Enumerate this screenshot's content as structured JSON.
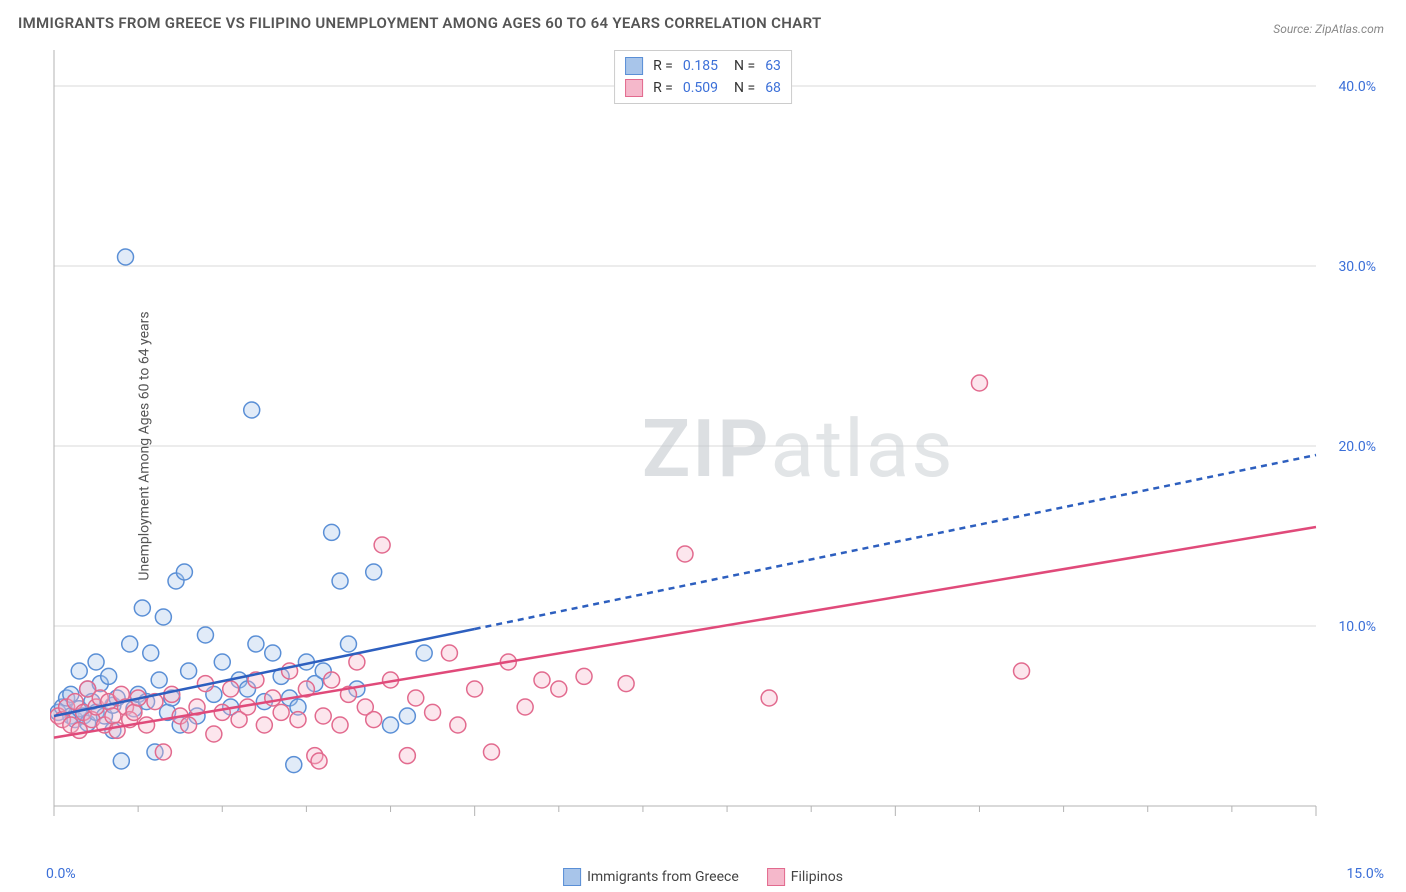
{
  "title": "IMMIGRANTS FROM GREECE VS FILIPINO UNEMPLOYMENT AMONG AGES 60 TO 64 YEARS CORRELATION CHART",
  "source": "Source: ZipAtlas.com",
  "y_axis_label": "Unemployment Among Ages 60 to 64 years",
  "watermark_a": "ZIP",
  "watermark_b": "atlas",
  "chart": {
    "type": "scatter",
    "background_color": "#ffffff",
    "grid_color": "#d9d9d9",
    "axis_color": "#b3b3b3",
    "tick_label_color": "#3b6fd8",
    "xlim": [
      0,
      15
    ],
    "ylim": [
      0,
      42
    ],
    "x_ticks": [
      0,
      5,
      10,
      15
    ],
    "x_tick_labels": [
      "0.0%",
      "",
      "",
      "15.0%"
    ],
    "x_minor_ticks": [
      1,
      2,
      3,
      4,
      6,
      7,
      8,
      9,
      11,
      12,
      13,
      14
    ],
    "y_ticks": [
      10,
      20,
      30,
      40
    ],
    "y_tick_labels": [
      "10.0%",
      "20.0%",
      "30.0%",
      "40.0%"
    ],
    "marker_radius": 8,
    "marker_stroke_width": 1.5,
    "marker_fill_opacity": 0.35,
    "series": [
      {
        "name": "Immigrants from Greece",
        "color_stroke": "#5a8fd6",
        "color_fill": "#a8c5ea",
        "R": "0.185",
        "N": "63",
        "regression": {
          "x1": 0,
          "y1": 5.0,
          "x2": 15,
          "y2": 19.5,
          "solid_until_x": 5.0,
          "color": "#2d5fbf",
          "width": 2.5,
          "dash": "6,5"
        },
        "points": [
          [
            0.05,
            5.2
          ],
          [
            0.1,
            5.5
          ],
          [
            0.15,
            6.0
          ],
          [
            0.2,
            5.0
          ],
          [
            0.2,
            6.2
          ],
          [
            0.25,
            4.8
          ],
          [
            0.3,
            5.4
          ],
          [
            0.3,
            7.5
          ],
          [
            0.35,
            5.0
          ],
          [
            0.4,
            6.5
          ],
          [
            0.4,
            4.6
          ],
          [
            0.45,
            5.8
          ],
          [
            0.5,
            8.0
          ],
          [
            0.5,
            5.2
          ],
          [
            0.55,
            6.8
          ],
          [
            0.6,
            5.0
          ],
          [
            0.65,
            7.2
          ],
          [
            0.7,
            5.6
          ],
          [
            0.7,
            4.2
          ],
          [
            0.75,
            6.0
          ],
          [
            0.8,
            2.5
          ],
          [
            0.85,
            30.5
          ],
          [
            0.9,
            9.0
          ],
          [
            0.95,
            5.4
          ],
          [
            1.0,
            6.2
          ],
          [
            1.05,
            11.0
          ],
          [
            1.1,
            5.8
          ],
          [
            1.15,
            8.5
          ],
          [
            1.2,
            3.0
          ],
          [
            1.25,
            7.0
          ],
          [
            1.3,
            10.5
          ],
          [
            1.35,
            5.2
          ],
          [
            1.4,
            6.0
          ],
          [
            1.45,
            12.5
          ],
          [
            1.5,
            4.5
          ],
          [
            1.55,
            13.0
          ],
          [
            1.6,
            7.5
          ],
          [
            1.7,
            5.0
          ],
          [
            1.8,
            9.5
          ],
          [
            1.9,
            6.2
          ],
          [
            2.0,
            8.0
          ],
          [
            2.1,
            5.5
          ],
          [
            2.2,
            7.0
          ],
          [
            2.3,
            6.5
          ],
          [
            2.35,
            22.0
          ],
          [
            2.4,
            9.0
          ],
          [
            2.5,
            5.8
          ],
          [
            2.6,
            8.5
          ],
          [
            2.7,
            7.2
          ],
          [
            2.8,
            6.0
          ],
          [
            2.85,
            2.3
          ],
          [
            2.9,
            5.5
          ],
          [
            3.0,
            8.0
          ],
          [
            3.1,
            6.8
          ],
          [
            3.2,
            7.5
          ],
          [
            3.3,
            15.2
          ],
          [
            3.4,
            12.5
          ],
          [
            3.5,
            9.0
          ],
          [
            3.6,
            6.5
          ],
          [
            3.8,
            13.0
          ],
          [
            4.0,
            4.5
          ],
          [
            4.2,
            5.0
          ],
          [
            4.4,
            8.5
          ]
        ]
      },
      {
        "name": "Filipinos",
        "color_stroke": "#e26a8e",
        "color_fill": "#f5b8cb",
        "R": "0.509",
        "N": "68",
        "regression": {
          "x1": 0,
          "y1": 3.8,
          "x2": 15,
          "y2": 15.5,
          "solid_until_x": 15,
          "color": "#e04a7a",
          "width": 2.5,
          "dash": null
        },
        "points": [
          [
            0.05,
            5.0
          ],
          [
            0.1,
            4.8
          ],
          [
            0.15,
            5.5
          ],
          [
            0.2,
            4.5
          ],
          [
            0.25,
            5.8
          ],
          [
            0.3,
            4.2
          ],
          [
            0.35,
            5.2
          ],
          [
            0.4,
            6.5
          ],
          [
            0.45,
            4.8
          ],
          [
            0.5,
            5.5
          ],
          [
            0.55,
            6.0
          ],
          [
            0.6,
            4.5
          ],
          [
            0.65,
            5.8
          ],
          [
            0.7,
            5.0
          ],
          [
            0.75,
            4.2
          ],
          [
            0.8,
            6.2
          ],
          [
            0.85,
            5.5
          ],
          [
            0.9,
            4.8
          ],
          [
            0.95,
            5.2
          ],
          [
            1.0,
            6.0
          ],
          [
            1.1,
            4.5
          ],
          [
            1.2,
            5.8
          ],
          [
            1.3,
            3.0
          ],
          [
            1.4,
            6.2
          ],
          [
            1.5,
            5.0
          ],
          [
            1.6,
            4.5
          ],
          [
            1.7,
            5.5
          ],
          [
            1.8,
            6.8
          ],
          [
            1.9,
            4.0
          ],
          [
            2.0,
            5.2
          ],
          [
            2.1,
            6.5
          ],
          [
            2.2,
            4.8
          ],
          [
            2.3,
            5.5
          ],
          [
            2.4,
            7.0
          ],
          [
            2.5,
            4.5
          ],
          [
            2.6,
            6.0
          ],
          [
            2.7,
            5.2
          ],
          [
            2.8,
            7.5
          ],
          [
            2.9,
            4.8
          ],
          [
            3.0,
            6.5
          ],
          [
            3.1,
            2.8
          ],
          [
            3.15,
            2.5
          ],
          [
            3.2,
            5.0
          ],
          [
            3.3,
            7.0
          ],
          [
            3.4,
            4.5
          ],
          [
            3.5,
            6.2
          ],
          [
            3.6,
            8.0
          ],
          [
            3.7,
            5.5
          ],
          [
            3.8,
            4.8
          ],
          [
            3.9,
            14.5
          ],
          [
            4.0,
            7.0
          ],
          [
            4.2,
            2.8
          ],
          [
            4.3,
            6.0
          ],
          [
            4.5,
            5.2
          ],
          [
            4.7,
            8.5
          ],
          [
            4.8,
            4.5
          ],
          [
            5.0,
            6.5
          ],
          [
            5.2,
            3.0
          ],
          [
            5.4,
            8.0
          ],
          [
            5.6,
            5.5
          ],
          [
            5.8,
            7.0
          ],
          [
            6.0,
            6.5
          ],
          [
            6.3,
            7.2
          ],
          [
            6.8,
            6.8
          ],
          [
            7.5,
            14.0
          ],
          [
            8.5,
            6.0
          ],
          [
            11.0,
            23.5
          ],
          [
            11.5,
            7.5
          ]
        ]
      }
    ],
    "legend_bottom": [
      {
        "label": "Immigrants from Greece",
        "stroke": "#5a8fd6",
        "fill": "#a8c5ea"
      },
      {
        "label": "Filipinos",
        "stroke": "#e26a8e",
        "fill": "#f5b8cb"
      }
    ]
  }
}
